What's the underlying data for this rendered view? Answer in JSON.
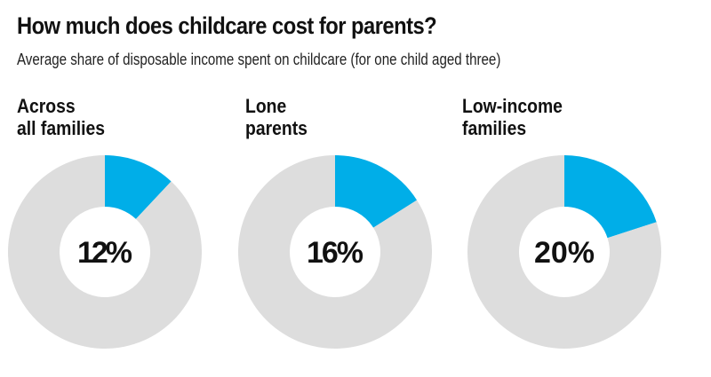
{
  "header": {
    "title": "How much does childcare cost for parents?",
    "subtitle": "Average share of disposable income spent on childcare (for one child aged three)"
  },
  "chart_data": [
    {
      "type": "pie",
      "variant": "donut",
      "title": "Across\nall families",
      "value_label": "12%",
      "values": [
        12,
        88
      ],
      "colors": [
        "#00aee8",
        "#dddddd"
      ]
    },
    {
      "type": "pie",
      "variant": "donut",
      "title": "Lone\nparents",
      "value_label": "16%",
      "values": [
        16,
        84
      ],
      "colors": [
        "#00aee8",
        "#dddddd"
      ]
    },
    {
      "type": "pie",
      "variant": "donut",
      "title": "Low-income\nfamilies",
      "value_label": "20%",
      "values": [
        20,
        80
      ],
      "colors": [
        "#00aee8",
        "#dddddd"
      ]
    }
  ]
}
